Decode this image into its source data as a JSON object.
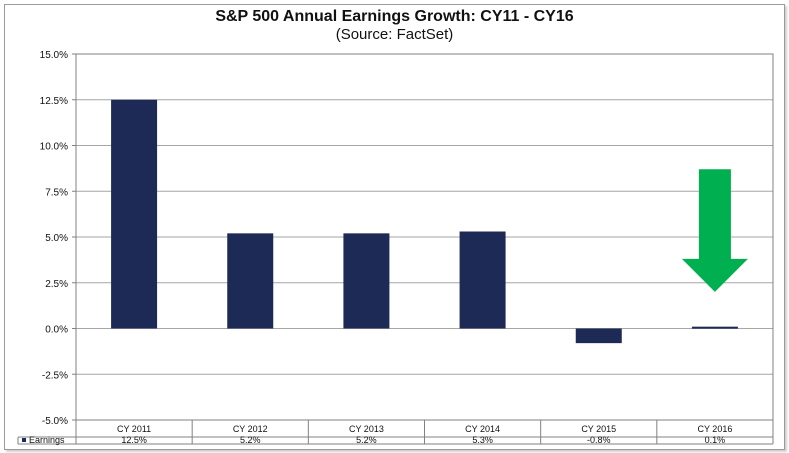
{
  "chart_data": {
    "type": "bar",
    "title": "S&P 500 Annual Earnings Growth: CY11 - CY16",
    "subtitle": "(Source: FactSet)",
    "categories": [
      "CY 2011",
      "CY 2012",
      "CY 2013",
      "CY 2014",
      "CY 2015",
      "CY 2016"
    ],
    "series": [
      {
        "name": "Earnings",
        "values": [
          12.5,
          5.2,
          5.2,
          5.3,
          -0.8,
          0.1
        ],
        "labels": [
          "12.5%",
          "5.2%",
          "5.2%",
          "5.3%",
          "-0.8%",
          "0.1%"
        ]
      }
    ],
    "ylim": [
      -5,
      15
    ],
    "yticks": [
      -5,
      -2.5,
      0,
      2.5,
      5,
      7.5,
      10,
      12.5,
      15
    ],
    "ytick_labels": [
      "-5.0%",
      "-2.5%",
      "0.0%",
      "2.5%",
      "5.0%",
      "7.5%",
      "10.0%",
      "12.5%",
      "15.0%"
    ],
    "grid": true,
    "legend": "data-table",
    "annotation": {
      "type": "down-arrow",
      "category": "CY 2016",
      "from": 8.7,
      "to": 2.0
    }
  },
  "colors": {
    "bar": "#1c2a55",
    "arrow": "#00b050",
    "grid": "#a6a6a6",
    "axis": "#808080"
  }
}
